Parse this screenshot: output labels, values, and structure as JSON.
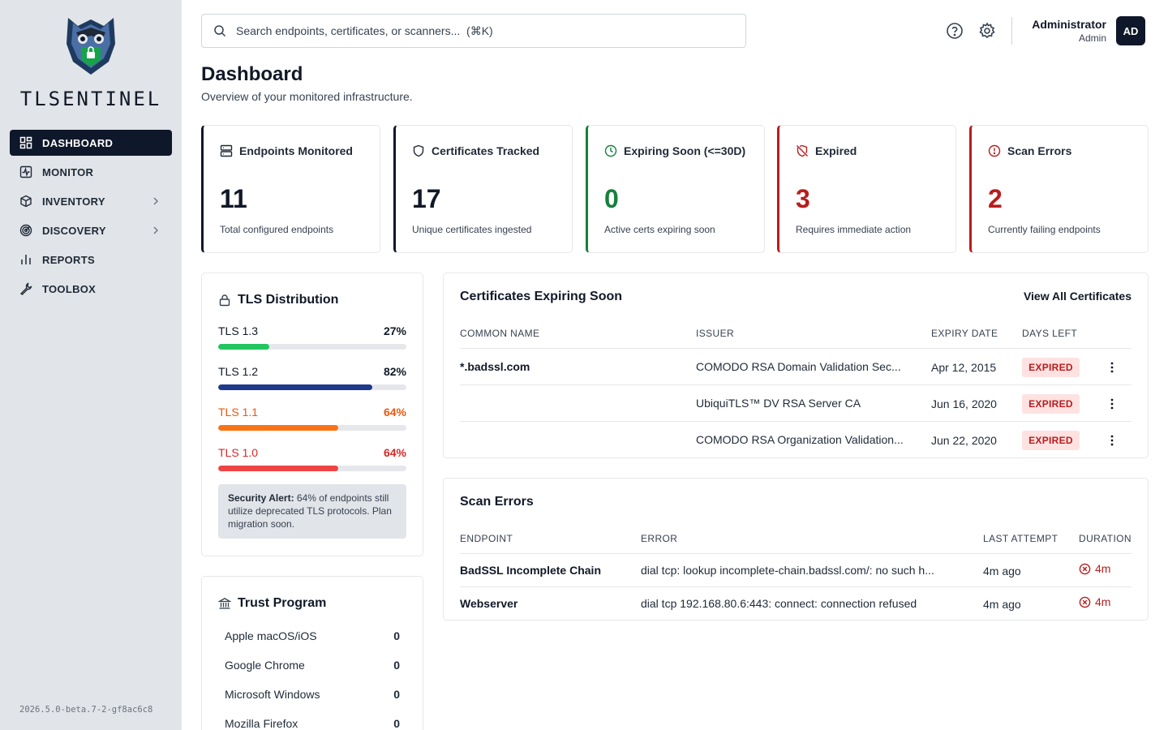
{
  "app": {
    "name": "TLSENTINEL",
    "version": "2026.5.0-beta.7-2-gf8ac6c8"
  },
  "sidebar": {
    "items": [
      {
        "label": "DASHBOARD",
        "icon": "dashboard-grid-icon",
        "active": true
      },
      {
        "label": "MONITOR",
        "icon": "monitor-pulse-icon"
      },
      {
        "label": "INVENTORY",
        "icon": "box-icon",
        "expandable": true
      },
      {
        "label": "DISCOVERY",
        "icon": "radar-icon",
        "expandable": true
      },
      {
        "label": "REPORTS",
        "icon": "bar-chart-icon"
      },
      {
        "label": "TOOLBOX",
        "icon": "wrench-icon"
      }
    ]
  },
  "header": {
    "search_placeholder": "Search endpoints, certificates, or scanners...  (⌘K)",
    "user_name": "Administrator",
    "user_role": "Admin",
    "avatar_initials": "AD"
  },
  "page": {
    "title": "Dashboard",
    "subtitle": "Overview of your monitored infrastructure."
  },
  "stats": [
    {
      "title": "Endpoints Monitored",
      "value": "11",
      "desc": "Total configured endpoints",
      "icon": "server-icon",
      "accent": "#0f172a",
      "value_color": "#111827"
    },
    {
      "title": "Certificates Tracked",
      "value": "17",
      "desc": "Unique certificates ingested",
      "icon": "shield-icon",
      "accent": "#0f172a",
      "value_color": "#111827"
    },
    {
      "title": "Expiring Soon (<=30D)",
      "value": "0",
      "desc": "Active certs expiring soon",
      "icon": "clock-icon",
      "accent": "#15803d",
      "value_color": "#15803d"
    },
    {
      "title": "Expired",
      "value": "3",
      "desc": "Requires immediate action",
      "icon": "shield-off-icon",
      "accent": "#b91c1c",
      "value_color": "#b91c1c"
    },
    {
      "title": "Scan Errors",
      "value": "2",
      "desc": "Currently failing endpoints",
      "icon": "alert-circle-icon",
      "accent": "#b91c1c",
      "value_color": "#b91c1c"
    }
  ],
  "tls_distribution": {
    "title": "TLS Distribution",
    "rows": [
      {
        "label": "TLS 1.3",
        "percent_text": "27%",
        "fraction": 0.27,
        "bar_color": "#22c55e",
        "text_color": "#111827"
      },
      {
        "label": "TLS 1.2",
        "percent_text": "82%",
        "fraction": 0.82,
        "bar_color": "#1e3a8a",
        "text_color": "#111827"
      },
      {
        "label": "TLS 1.1",
        "percent_text": "64%",
        "fraction": 0.64,
        "bar_color": "#f97316",
        "text_color": "#ea580c"
      },
      {
        "label": "TLS 1.0",
        "percent_text": "64%",
        "fraction": 0.64,
        "bar_color": "#ef4444",
        "text_color": "#dc2626"
      }
    ],
    "alert_bold": "Security Alert:",
    "alert_text": " 64% of endpoints still utilize deprecated TLS protocols. Plan migration soon."
  },
  "trust_program": {
    "title": "Trust Program",
    "rows": [
      {
        "label": "Apple macOS/iOS",
        "value": "0"
      },
      {
        "label": "Google Chrome",
        "value": "0"
      },
      {
        "label": "Microsoft Windows",
        "value": "0"
      },
      {
        "label": "Mozilla Firefox",
        "value": "0"
      }
    ]
  },
  "expiring": {
    "title": "Certificates Expiring Soon",
    "view_all": "View All Certificates",
    "columns": [
      "COMMON NAME",
      "ISSUER",
      "EXPIRY DATE",
      "DAYS LEFT"
    ],
    "rows": [
      {
        "common_name": "*.badssl.com",
        "issuer": "COMODO RSA Domain Validation Sec...",
        "expiry": "Apr 12, 2015",
        "status": "EXPIRED"
      },
      {
        "common_name": "",
        "issuer": "UbiquiTLS™ DV RSA Server CA",
        "expiry": "Jun 16, 2020",
        "status": "EXPIRED"
      },
      {
        "common_name": "",
        "issuer": "COMODO RSA Organization Validation...",
        "expiry": "Jun 22, 2020",
        "status": "EXPIRED"
      }
    ]
  },
  "scan_errors": {
    "title": "Scan Errors",
    "columns": [
      "ENDPOINT",
      "ERROR",
      "LAST ATTEMPT",
      "DURATION"
    ],
    "rows": [
      {
        "endpoint": "BadSSL Incomplete Chain",
        "error": "dial tcp: lookup incomplete-chain.badssl.com/: no such h...",
        "last_attempt": "4m ago",
        "duration": "4m"
      },
      {
        "endpoint": "Webserver",
        "error": "dial tcp 192.168.80.6:443: connect: connection refused",
        "last_attempt": "4m ago",
        "duration": "4m"
      }
    ]
  }
}
